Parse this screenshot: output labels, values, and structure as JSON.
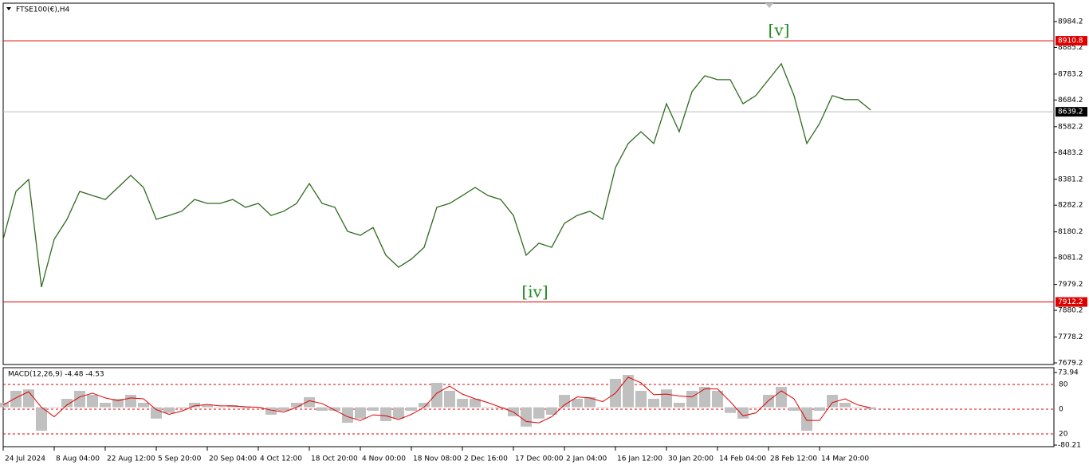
{
  "chart_data": [
    {
      "type": "line",
      "title": "FTSE100(€),H4",
      "color": "#2e6b1e",
      "categories": [
        "24 Jul 2024",
        null,
        null,
        null,
        "8 Aug 04:00",
        null,
        null,
        null,
        "22 Aug 12:00",
        null,
        null,
        null,
        "5 Sep 20:00",
        null,
        null,
        null,
        "20 Sep 04:00",
        null,
        null,
        null,
        "4 Oct 12:00",
        null,
        null,
        null,
        "18 Oct 20:00",
        null,
        null,
        null,
        "4 Nov 00:00",
        null,
        null,
        null,
        "18 Nov 08:00",
        null,
        null,
        null,
        "2 Dec 16:00",
        null,
        null,
        null,
        "17 Dec 00:00",
        null,
        null,
        null,
        "2 Jan 04:00",
        null,
        null,
        null,
        "16 Jan 12:00",
        null,
        null,
        null,
        "30 Jan 20:00",
        null,
        null,
        null,
        "14 Feb 04:00",
        null,
        null,
        null,
        "28 Feb 12:00",
        null,
        null,
        null,
        "14 Mar 20:00",
        null,
        null,
        null,
        null
      ],
      "values": [
        8151.8,
        8334.8,
        8380.5,
        7968.9,
        8151.8,
        8228,
        8334.8,
        8319,
        8304,
        8350,
        8396,
        8350,
        8228,
        8243,
        8259,
        8304,
        8289,
        8289,
        8304,
        8274,
        8289,
        8243,
        8259,
        8289,
        8365,
        8289,
        8274,
        8182,
        8167,
        8197,
        8091,
        8045,
        8076,
        8121,
        8274,
        8289,
        8319,
        8350,
        8319,
        8304,
        8243,
        8091,
        8137,
        8121,
        8213,
        8243,
        8259,
        8228,
        8426,
        8518,
        8563,
        8518,
        8670,
        8563,
        8716,
        8777,
        8762,
        8762,
        8670,
        8701,
        8762,
        8823,
        8701,
        8518,
        8594,
        8701,
        8686,
        8686,
        8646
      ],
      "ylim": [
        7673.1,
        9054.3
      ],
      "yticks": [
        8984.2,
        8885.2,
        8783.2,
        8684.2,
        8582.2,
        8483.2,
        8381.2,
        8282.2,
        8180.2,
        8081.2,
        7979.2,
        7880.2,
        7778.2,
        7679.2
      ],
      "levels": [
        {
          "value": 8910.8,
          "color": "#e00000"
        },
        {
          "value": 8639.2,
          "color": "#000000"
        },
        {
          "value": 7912.2,
          "color": "#e00000"
        }
      ],
      "annotations": [
        "[v]",
        "[iv]"
      ]
    },
    {
      "type": "bar",
      "title": "MACD(12,26,9) -4.48 -4.53",
      "series": [
        {
          "color": "#c0c0c0",
          "values": [
            9.6,
            35,
            38,
            -49.7,
            1,
            18,
            35,
            26.5,
            9.6,
            18,
            26.5,
            9.6,
            -24,
            -12,
            -2,
            9.6,
            4.5,
            1,
            4.5,
            -2,
            1,
            -15.8,
            -7.4,
            9.6,
            21.5,
            -7.4,
            -7.4,
            -32.8,
            -24,
            -7.4,
            -29.4,
            -24,
            -7.4,
            9.6,
            52,
            35,
            18,
            18,
            1,
            -2,
            -19,
            -41,
            -24,
            -15.8,
            26.5,
            18,
            21.5,
            1,
            60.4,
            68.9,
            35,
            18,
            38,
            9.6,
            35,
            43.4,
            35,
            -12,
            -24,
            1,
            26.5,
            43.4,
            -7.4,
            -49.7,
            -7.4,
            26.5,
            9.6,
            1,
            -4
          ]
        },
        {
          "color": "#e00000",
          "values": [
            5,
            20,
            33,
            0,
            -20,
            5,
            22,
            30,
            20,
            14,
            20,
            18,
            -5,
            -15,
            -8,
            3,
            6,
            3,
            3,
            1,
            0,
            -6,
            -10,
            0,
            14,
            8,
            -6,
            -20,
            -28,
            -16,
            -18,
            -26,
            -15,
            0,
            30,
            45,
            28,
            18,
            10,
            0,
            -10,
            -30,
            -33,
            -20,
            5,
            22,
            20,
            12,
            30,
            64,
            52,
            27,
            28,
            24,
            22,
            39,
            39,
            12,
            -18,
            -12,
            14,
            35,
            18,
            -28,
            -28,
            10,
            18,
            5,
            -1
          ]
        }
      ],
      "ylim": [
        -83.6,
        84.1
      ],
      "yticks": [
        73.94,
        -80.21
      ],
      "levels": [
        "80",
        "0",
        "20"
      ]
    }
  ]
}
